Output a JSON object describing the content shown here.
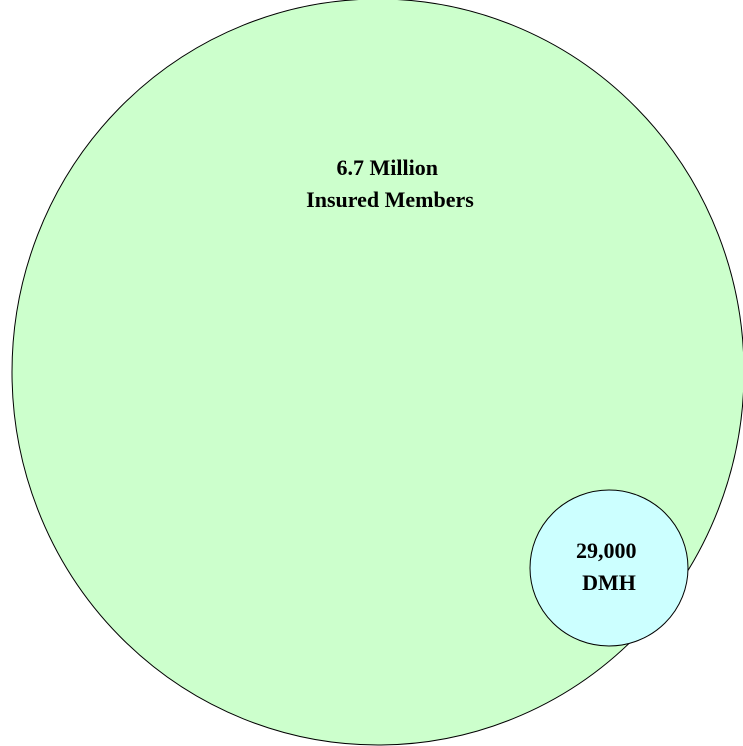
{
  "colors": {
    "outer_fill": "#ccffcc",
    "inner_fill": "#ccffff",
    "stroke": "#000000"
  },
  "outer_circle": {
    "line1": "6.7 Million",
    "line2": "Insured Members"
  },
  "inner_circle": {
    "line1": "29,000",
    "line2": "DMH"
  }
}
